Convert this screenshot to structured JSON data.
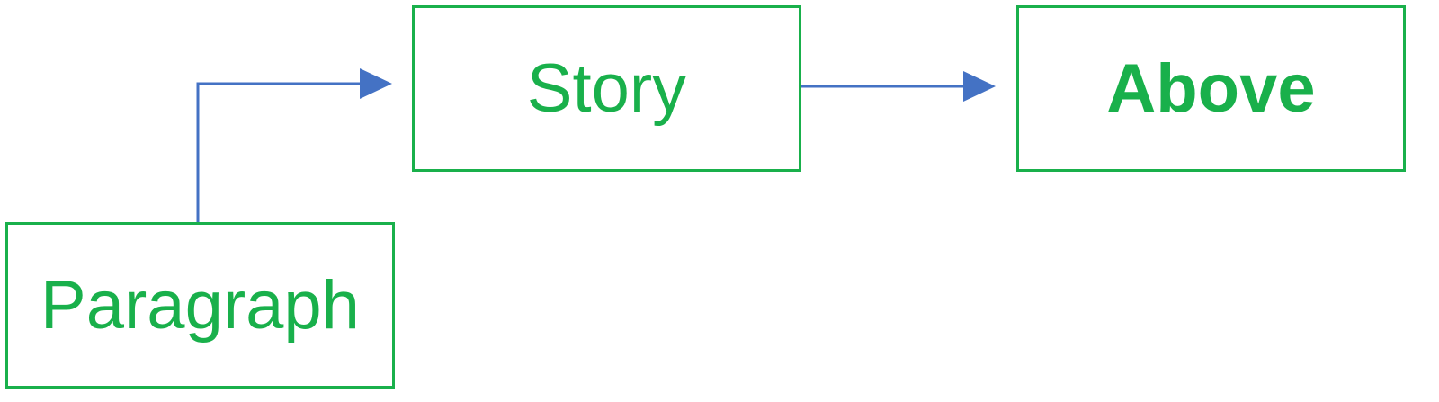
{
  "nodes": {
    "paragraph": "Paragraph",
    "story": "Story",
    "above": "Above"
  },
  "edges": [
    {
      "from": "paragraph",
      "to": "story"
    },
    {
      "from": "story",
      "to": "above"
    }
  ],
  "colors": {
    "node_text": "#19b04b",
    "node_border": "#19b04b",
    "edge": "#4472c4",
    "background": "#ffffff"
  }
}
